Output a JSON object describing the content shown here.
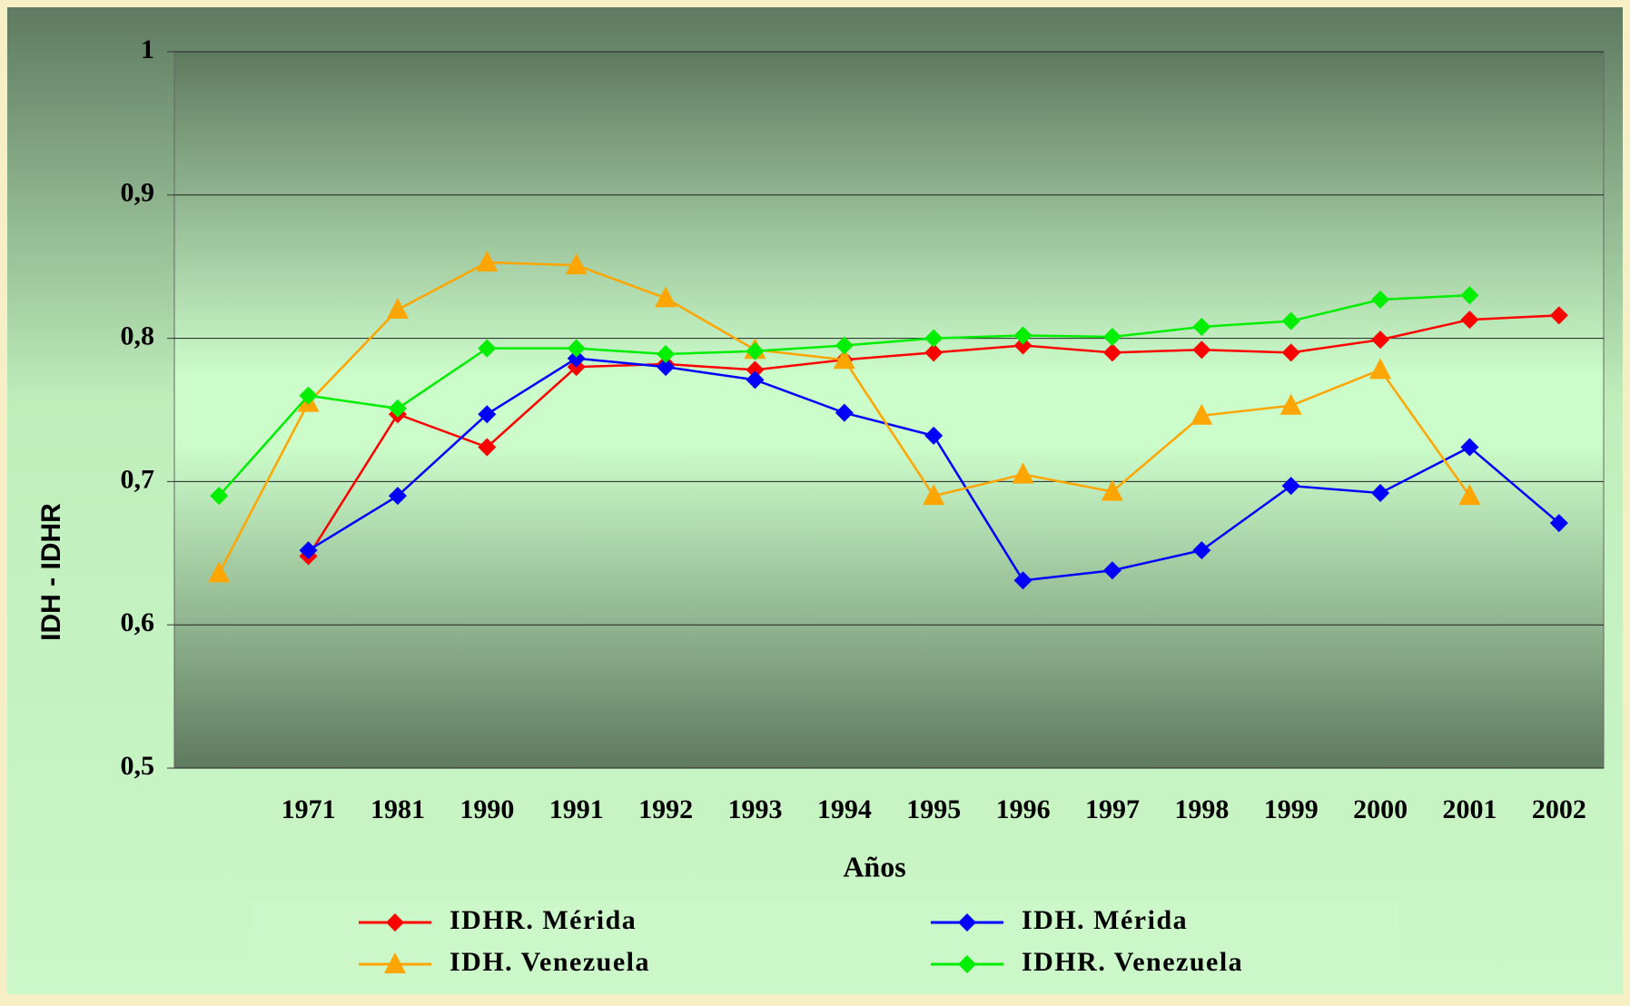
{
  "chart_data": {
    "type": "line",
    "categories": [
      null,
      "1971",
      "1981",
      "1990",
      "1991",
      "1992",
      "1993",
      "1994",
      "1995",
      "1996",
      "1997",
      "1998",
      "1999",
      "2000",
      "2001",
      "2002"
    ],
    "x_label": "Años",
    "y_label": "IDH - IDHR",
    "ylim": [
      0.5,
      1
    ],
    "yticks": [
      {
        "value": 0.5,
        "label": "0,5"
      },
      {
        "value": 0.6,
        "label": "0,6"
      },
      {
        "value": 0.7,
        "label": "0,7"
      },
      {
        "value": 0.8,
        "label": "0,8"
      },
      {
        "value": 0.9,
        "label": "0,9"
      },
      1
    ],
    "grid": true,
    "series": [
      {
        "name": "IDHR. Mérida",
        "color": "#ff0000",
        "marker": "diamond",
        "values": [
          null,
          0.648,
          0.747,
          0.724,
          0.78,
          0.782,
          0.778,
          0.785,
          0.79,
          0.795,
          0.79,
          0.792,
          0.79,
          0.799,
          0.813,
          0.816
        ]
      },
      {
        "name": "IDH. Mérida",
        "color": "#0000ff",
        "marker": "diamond",
        "values": [
          null,
          0.652,
          0.69,
          0.747,
          0.786,
          0.78,
          0.771,
          0.748,
          0.732,
          0.631,
          0.638,
          0.652,
          0.697,
          0.692,
          0.724,
          0.671
        ]
      },
      {
        "name": "IDH. Venezuela",
        "color": "#ffa500",
        "marker": "triangle",
        "values": [
          0.636,
          0.755,
          0.82,
          0.853,
          0.851,
          0.828,
          0.792,
          0.785,
          0.69,
          0.705,
          0.693,
          0.746,
          0.753,
          0.778,
          0.69,
          null
        ]
      },
      {
        "name": "IDHR. Venezuela",
        "color": "#00ee00",
        "marker": "diamond",
        "values": [
          0.69,
          0.76,
          0.751,
          0.793,
          0.793,
          0.789,
          0.791,
          0.795,
          0.8,
          0.802,
          0.801,
          0.808,
          0.812,
          0.827,
          0.83,
          null
        ]
      }
    ]
  }
}
